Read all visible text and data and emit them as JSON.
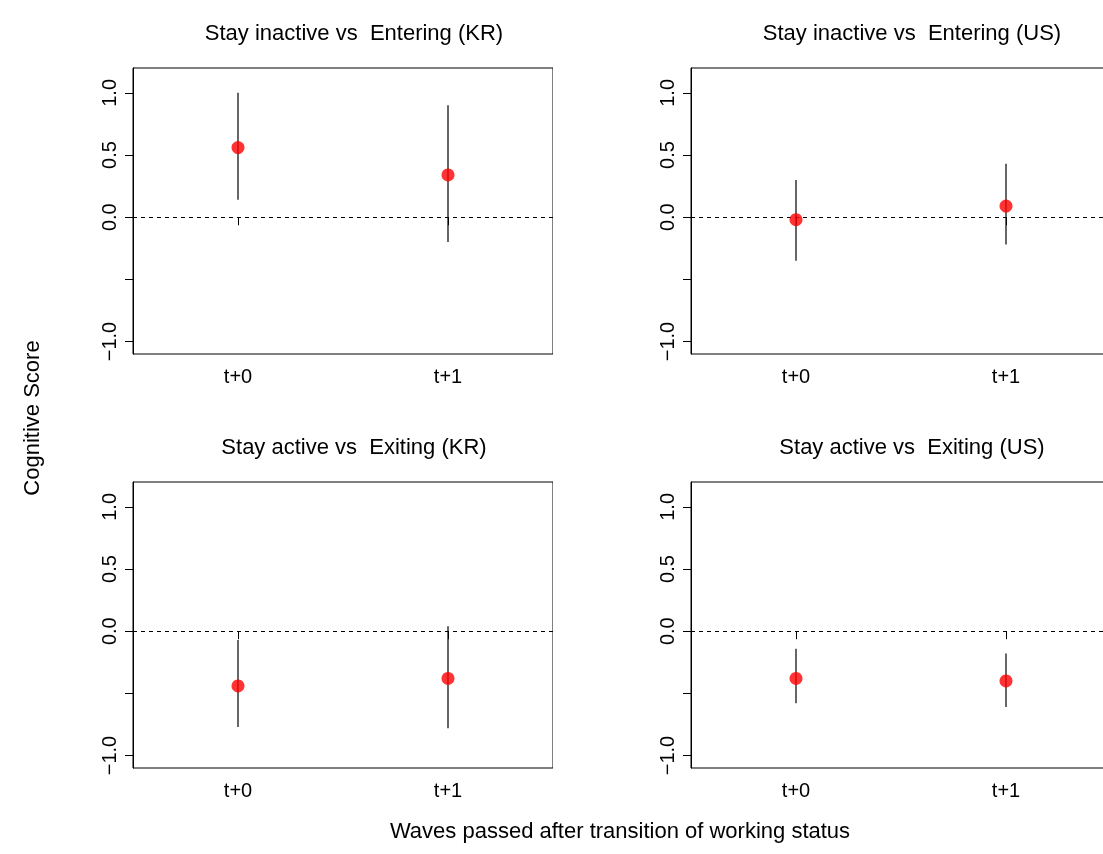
{
  "chart_data": [
    {
      "type": "scatter",
      "title": "Stay inactive vs  Entering (KR)",
      "ylabel": "Cognitive Score",
      "categories": [
        "t+0",
        "t+1"
      ],
      "series": [
        {
          "color": "#ff0000",
          "values": [
            0.56,
            0.34
          ],
          "errors": [
            [
              0.14,
              1.0
            ],
            [
              -0.2,
              0.9
            ]
          ]
        }
      ],
      "ylim": [
        -1.1,
        1.2
      ],
      "yticks": [
        {
          "value": -1.0,
          "label": "−1.0"
        },
        {
          "value": -0.5,
          "label": null
        },
        {
          "value": 0,
          "label": "0.0"
        },
        {
          "value": 0.5,
          "label": "0.5"
        },
        {
          "value": 1,
          "label": "1.0"
        }
      ],
      "marker": "circle",
      "grid": false,
      "ref_lines": [
        {
          "axis": "y",
          "value": 0,
          "line_style": "dashed"
        }
      ]
    },
    {
      "type": "scatter",
      "title": "Stay inactive vs  Entering (US)",
      "categories": [
        "t+0",
        "t+1"
      ],
      "series": [
        {
          "color": "#ff0000",
          "values": [
            -0.02,
            0.09
          ],
          "errors": [
            [
              -0.35,
              0.3
            ],
            [
              -0.22,
              0.43
            ]
          ]
        }
      ],
      "ylim": [
        -1.1,
        1.2
      ],
      "yticks": [
        {
          "value": -1.0,
          "label": "−1.0"
        },
        {
          "value": -0.5,
          "label": null
        },
        {
          "value": 0,
          "label": "0.0"
        },
        {
          "value": 0.5,
          "label": "0.5"
        },
        {
          "value": 1,
          "label": "1.0"
        }
      ],
      "marker": "circle",
      "grid": false,
      "ref_lines": [
        {
          "axis": "y",
          "value": 0,
          "line_style": "dashed"
        }
      ]
    },
    {
      "type": "scatter",
      "title": "Stay active vs  Exiting (KR)",
      "xlabel": "Waves passed after transition of working status",
      "categories": [
        "t+0",
        "t+1"
      ],
      "series": [
        {
          "color": "#ff0000",
          "values": [
            -0.44,
            -0.38
          ],
          "errors": [
            [
              -0.77,
              -0.07
            ],
            [
              -0.78,
              0.04
            ]
          ]
        }
      ],
      "ylim": [
        -1.1,
        1.2
      ],
      "yticks": [
        {
          "value": -1.0,
          "label": "−1.0"
        },
        {
          "value": -0.5,
          "label": null
        },
        {
          "value": 0,
          "label": "0.0"
        },
        {
          "value": 0.5,
          "label": "0.5"
        },
        {
          "value": 1,
          "label": "1.0"
        }
      ],
      "marker": "circle",
      "grid": false,
      "ref_lines": [
        {
          "axis": "y",
          "value": 0,
          "line_style": "dashed"
        }
      ]
    },
    {
      "type": "scatter",
      "title": "Stay active vs  Exiting (US)",
      "categories": [
        "t+0",
        "t+1"
      ],
      "series": [
        {
          "color": "#ff0000",
          "values": [
            -0.38,
            -0.4
          ],
          "errors": [
            [
              -0.58,
              -0.14
            ],
            [
              -0.61,
              -0.18
            ]
          ]
        }
      ],
      "ylim": [
        -1.1,
        1.2
      ],
      "yticks": [
        {
          "value": -1.0,
          "label": "−1.0"
        },
        {
          "value": -0.5,
          "label": null
        },
        {
          "value": 0,
          "label": "0.0"
        },
        {
          "value": 0.5,
          "label": "0.5"
        },
        {
          "value": 1,
          "label": "1.0"
        }
      ],
      "marker": "circle",
      "grid": false,
      "ref_lines": [
        {
          "axis": "y",
          "value": 0,
          "line_style": "dashed"
        }
      ]
    }
  ]
}
